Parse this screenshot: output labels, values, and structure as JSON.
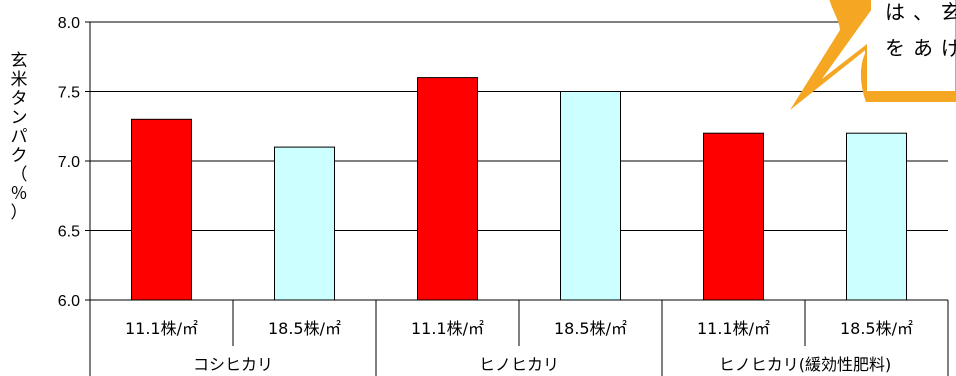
{
  "chart_data": {
    "type": "bar",
    "ylabel_chars": [
      "玄",
      "米",
      "タ",
      "ン",
      "パ",
      "ク",
      "（",
      "％",
      "）"
    ],
    "ylim": [
      6.0,
      8.0
    ],
    "yticks": [
      "6.0",
      "6.5",
      "7.0",
      "7.5",
      "8.0"
    ],
    "grid": true,
    "groups": [
      {
        "label": "コシヒカリ",
        "categories": [
          "11.1株/㎡",
          "18.5株/㎡"
        ],
        "values": [
          7.3,
          7.1
        ]
      },
      {
        "label": "ヒノヒカリ",
        "categories": [
          "11.1株/㎡",
          "18.5株/㎡"
        ],
        "values": [
          7.6,
          7.5
        ]
      },
      {
        "label": "ヒノヒカリ(緩効性肥料)",
        "categories": [
          "11.1株/㎡",
          "18.5株/㎡"
        ],
        "values": [
          7.2,
          7.2
        ]
      }
    ],
    "bar_colors": [
      "#ff0000",
      "#ccffff"
    ]
  },
  "callout": {
    "lines": [
      "は、玄",
      "をあげ"
    ]
  }
}
